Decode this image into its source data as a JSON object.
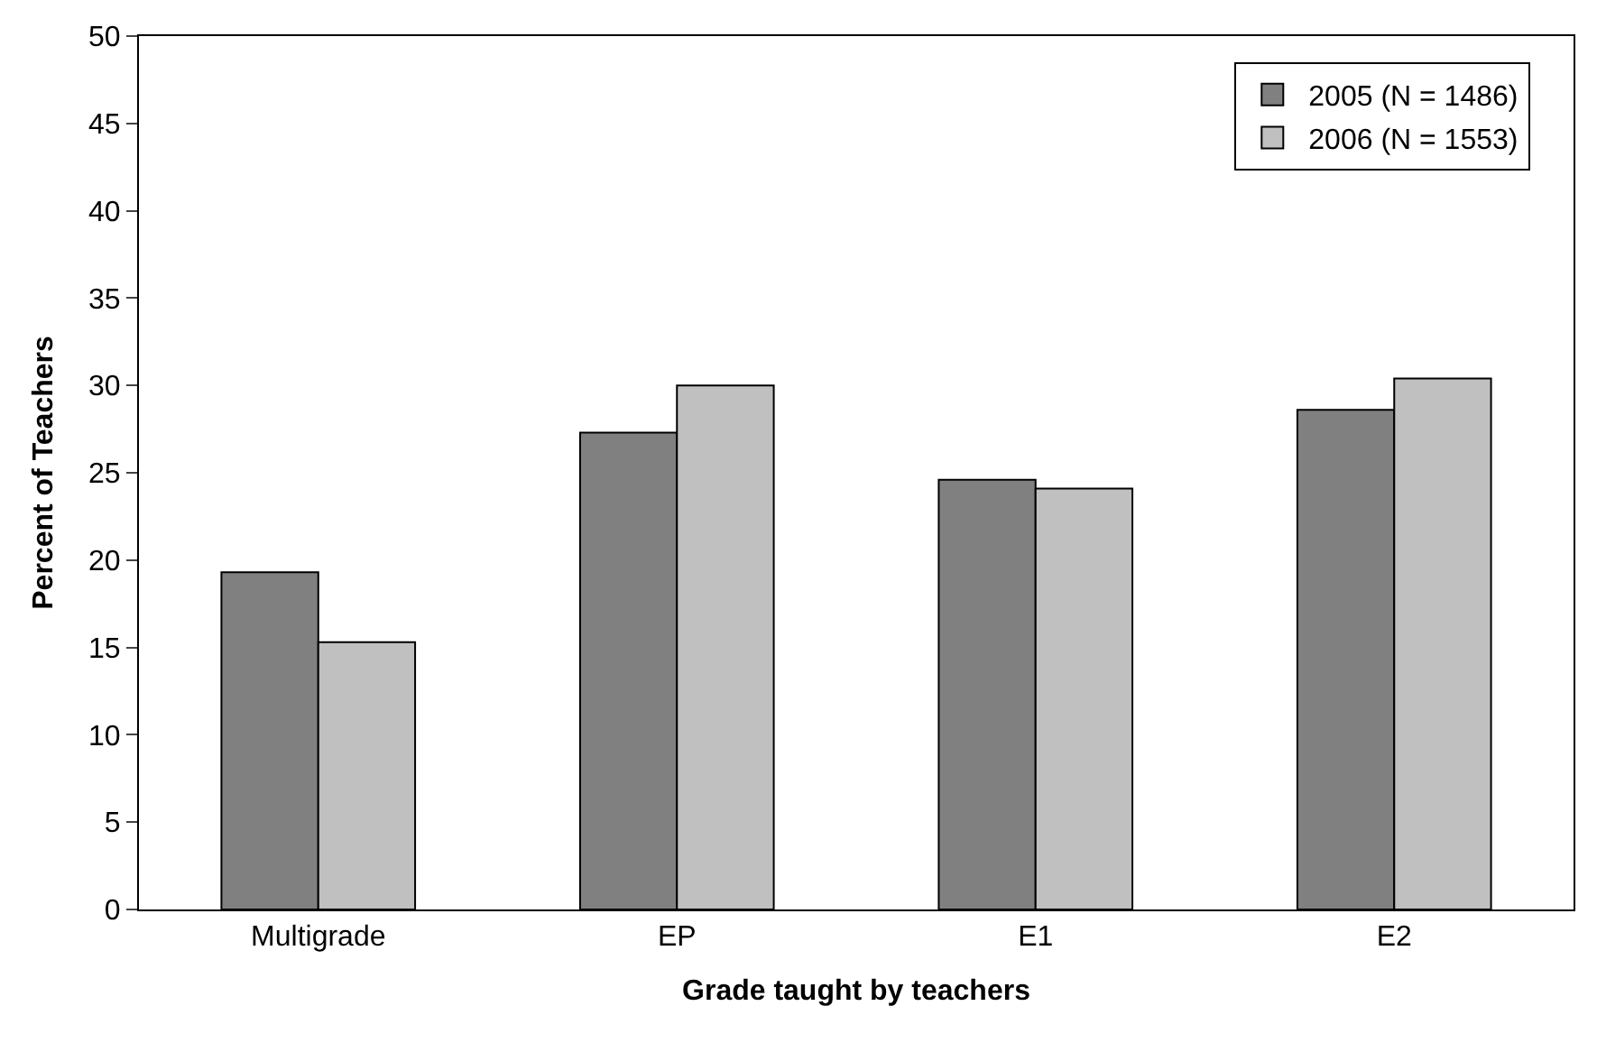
{
  "chart_data": {
    "type": "bar",
    "xlabel": "Grade taught by teachers",
    "ylabel": "Percent of Teachers",
    "categories": [
      "Multigrade",
      "EP",
      "E1",
      "E2"
    ],
    "series": [
      {
        "name": "2005 (N = 1486)",
        "color": "#808080",
        "values": [
          19.3,
          27.3,
          24.6,
          28.6
        ]
      },
      {
        "name": "2006 (N = 1553)",
        "color": "#c0c0c0",
        "values": [
          15.3,
          30.0,
          24.1,
          30.4
        ]
      }
    ],
    "ylim": [
      0,
      50
    ],
    "yticks": [
      0,
      5,
      10,
      15,
      20,
      25,
      30,
      35,
      40,
      45,
      50
    ],
    "legend": "top right"
  }
}
